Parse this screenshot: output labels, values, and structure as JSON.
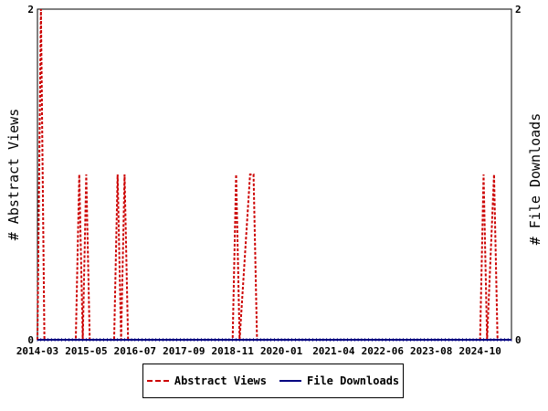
{
  "chart_data": {
    "type": "line",
    "x_ticks": [
      "2014-03",
      "2015-05",
      "2016-07",
      "2017-09",
      "2018-11",
      "2020-01",
      "2021-04",
      "2022-06",
      "2023-08",
      "2024-10"
    ],
    "x_range": [
      "2014-03",
      "2025-07"
    ],
    "ylabel_left": "# Abstract Views",
    "ylabel_right": "# File Downloads",
    "ylim_left": [
      0,
      2
    ],
    "ylim_right": [
      0,
      2
    ],
    "y_ticks_left": [
      "0",
      "2"
    ],
    "y_ticks_right": [
      "0",
      "2"
    ],
    "legend_position": "bottom",
    "series": [
      {
        "name": "Abstract Views",
        "color": "#cc0000",
        "style": "dashed",
        "axis": "left",
        "points": [
          [
            "2014-03",
            0
          ],
          [
            "2014-04",
            2
          ],
          [
            "2014-05",
            0
          ],
          [
            "2015-02",
            0
          ],
          [
            "2015-03",
            1
          ],
          [
            "2015-04",
            0
          ],
          [
            "2015-05",
            1
          ],
          [
            "2015-06",
            0
          ],
          [
            "2016-01",
            0
          ],
          [
            "2016-02",
            1
          ],
          [
            "2016-03",
            0
          ],
          [
            "2016-04",
            1
          ],
          [
            "2016-05",
            0
          ],
          [
            "2018-11",
            0
          ],
          [
            "2018-12",
            1
          ],
          [
            "2019-01",
            0
          ],
          [
            "2019-04",
            1
          ],
          [
            "2019-05",
            1
          ],
          [
            "2019-06",
            0
          ],
          [
            "2024-10",
            0
          ],
          [
            "2024-11",
            1
          ],
          [
            "2024-12",
            0
          ],
          [
            "2025-02",
            1
          ],
          [
            "2025-03",
            0
          ],
          [
            "2025-07",
            0
          ]
        ]
      },
      {
        "name": "File Downloads",
        "color": "#000080",
        "style": "solid",
        "axis": "right",
        "points": [
          [
            "2014-03",
            0
          ],
          [
            "2025-07",
            0
          ]
        ]
      }
    ]
  },
  "legend": {
    "items": [
      {
        "label": "Abstract Views",
        "color": "#cc0000",
        "style": "dashed"
      },
      {
        "label": "File Downloads",
        "color": "#000080",
        "style": "solid"
      }
    ]
  }
}
